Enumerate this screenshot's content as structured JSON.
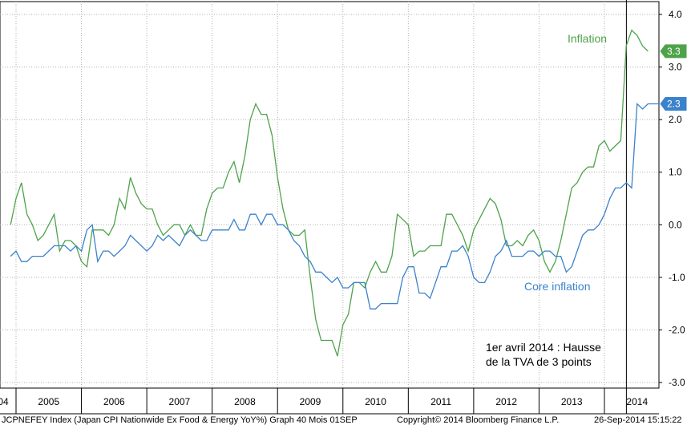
{
  "colors": {
    "inflation": "#4ea34a",
    "core": "#3b82cc",
    "grid": "#b0b0b0",
    "axis": "#000000"
  },
  "chart_data": {
    "type": "line",
    "ylim": [
      -3.0,
      4.0
    ],
    "yticks": [
      "4.0",
      "3.0",
      "2.0",
      "1.0",
      "0.0",
      "-1.0",
      "-2.0",
      "-3.0"
    ],
    "ytick_values": [
      4,
      3,
      2,
      1,
      0,
      -1,
      -2,
      -3
    ],
    "xlim": [
      "2004-12",
      "2014-12"
    ],
    "xticks": [
      "04",
      "2005",
      "2006",
      "2007",
      "2008",
      "2009",
      "2010",
      "2011",
      "2012",
      "2013",
      "2014"
    ],
    "grid": true,
    "series": [
      {
        "name": "Inflation",
        "color": "#4ea34a",
        "last_value": "3.3",
        "points": [
          [
            "2004-12",
            0.0
          ],
          [
            "2005-01",
            0.5
          ],
          [
            "2005-02",
            0.8
          ],
          [
            "2005-03",
            0.2
          ],
          [
            "2005-04",
            0.0
          ],
          [
            "2005-05",
            -0.3
          ],
          [
            "2005-06",
            -0.2
          ],
          [
            "2005-07",
            0.0
          ],
          [
            "2005-08",
            0.2
          ],
          [
            "2005-09",
            -0.5
          ],
          [
            "2005-10",
            -0.3
          ],
          [
            "2005-11",
            -0.3
          ],
          [
            "2005-12",
            -0.4
          ],
          [
            "2006-01",
            -0.7
          ],
          [
            "2006-02",
            -0.8
          ],
          [
            "2006-03",
            -0.1
          ],
          [
            "2006-04",
            -0.1
          ],
          [
            "2006-05",
            -0.1
          ],
          [
            "2006-06",
            -0.2
          ],
          [
            "2006-07",
            0.0
          ],
          [
            "2006-08",
            0.5
          ],
          [
            "2006-09",
            0.3
          ],
          [
            "2006-10",
            0.9
          ],
          [
            "2006-11",
            0.6
          ],
          [
            "2006-12",
            0.4
          ],
          [
            "2007-01",
            0.3
          ],
          [
            "2007-02",
            0.3
          ],
          [
            "2007-03",
            0.0
          ],
          [
            "2007-04",
            -0.2
          ],
          [
            "2007-05",
            -0.1
          ],
          [
            "2007-06",
            0.0
          ],
          [
            "2007-07",
            0.0
          ],
          [
            "2007-08",
            -0.2
          ],
          [
            "2007-09",
            0.0
          ],
          [
            "2007-10",
            -0.2
          ],
          [
            "2007-11",
            -0.2
          ],
          [
            "2007-12",
            0.3
          ],
          [
            "2008-01",
            0.6
          ],
          [
            "2008-02",
            0.7
          ],
          [
            "2008-03",
            0.7
          ],
          [
            "2008-04",
            1.0
          ],
          [
            "2008-05",
            1.2
          ],
          [
            "2008-06",
            0.8
          ],
          [
            "2008-07",
            1.3
          ],
          [
            "2008-08",
            2.0
          ],
          [
            "2008-09",
            2.3
          ],
          [
            "2008-10",
            2.1
          ],
          [
            "2008-11",
            2.1
          ],
          [
            "2008-12",
            1.7
          ],
          [
            "2009-01",
            0.9
          ],
          [
            "2009-02",
            0.3
          ],
          [
            "2009-03",
            -0.1
          ],
          [
            "2009-04",
            -0.2
          ],
          [
            "2009-05",
            -0.2
          ],
          [
            "2009-06",
            -0.1
          ],
          [
            "2009-07",
            -1.0
          ],
          [
            "2009-08",
            -1.8
          ],
          [
            "2009-09",
            -2.2
          ],
          [
            "2009-10",
            -2.2
          ],
          [
            "2009-11",
            -2.2
          ],
          [
            "2009-12",
            -2.5
          ],
          [
            "2010-01",
            -1.9
          ],
          [
            "2010-02",
            -1.7
          ],
          [
            "2010-03",
            -1.1
          ],
          [
            "2010-04",
            -1.1
          ],
          [
            "2010-05",
            -1.2
          ],
          [
            "2010-06",
            -0.9
          ],
          [
            "2010-07",
            -0.7
          ],
          [
            "2010-08",
            -0.9
          ],
          [
            "2010-09",
            -0.9
          ],
          [
            "2010-10",
            -0.6
          ],
          [
            "2010-11",
            0.2
          ],
          [
            "2010-12",
            0.1
          ],
          [
            "2011-01",
            0.0
          ],
          [
            "2011-02",
            -0.6
          ],
          [
            "2011-03",
            -0.5
          ],
          [
            "2011-04",
            -0.5
          ],
          [
            "2011-05",
            -0.4
          ],
          [
            "2011-06",
            -0.4
          ],
          [
            "2011-07",
            -0.4
          ],
          [
            "2011-08",
            0.2
          ],
          [
            "2011-09",
            0.2
          ],
          [
            "2011-10",
            0.0
          ],
          [
            "2011-11",
            -0.2
          ],
          [
            "2011-12",
            -0.5
          ],
          [
            "2012-01",
            -0.1
          ],
          [
            "2012-02",
            0.1
          ],
          [
            "2012-03",
            0.3
          ],
          [
            "2012-04",
            0.5
          ],
          [
            "2012-05",
            0.4
          ],
          [
            "2012-06",
            0.1
          ],
          [
            "2012-07",
            -0.4
          ],
          [
            "2012-08",
            -0.4
          ],
          [
            "2012-09",
            -0.3
          ],
          [
            "2012-10",
            -0.4
          ],
          [
            "2012-11",
            -0.2
          ],
          [
            "2012-12",
            -0.1
          ],
          [
            "2013-01",
            -0.3
          ],
          [
            "2013-02",
            -0.7
          ],
          [
            "2013-03",
            -0.9
          ],
          [
            "2013-04",
            -0.7
          ],
          [
            "2013-05",
            -0.3
          ],
          [
            "2013-06",
            0.2
          ],
          [
            "2013-07",
            0.7
          ],
          [
            "2013-08",
            0.8
          ],
          [
            "2013-09",
            1.0
          ],
          [
            "2013-10",
            1.1
          ],
          [
            "2013-11",
            1.1
          ],
          [
            "2013-12",
            1.5
          ],
          [
            "2014-01",
            1.6
          ],
          [
            "2014-02",
            1.4
          ],
          [
            "2014-03",
            1.5
          ],
          [
            "2014-04",
            1.6
          ],
          [
            "2014-05",
            3.4
          ],
          [
            "2014-06",
            3.7
          ],
          [
            "2014-07",
            3.6
          ],
          [
            "2014-08",
            3.4
          ],
          [
            "2014-09",
            3.3
          ]
        ]
      },
      {
        "name": "Core inflation",
        "color": "#3b82cc",
        "last_value": "2.3",
        "points": [
          [
            "2004-12",
            -0.6
          ],
          [
            "2005-01",
            -0.5
          ],
          [
            "2005-02",
            -0.7
          ],
          [
            "2005-03",
            -0.7
          ],
          [
            "2005-04",
            -0.6
          ],
          [
            "2005-05",
            -0.6
          ],
          [
            "2005-06",
            -0.6
          ],
          [
            "2005-07",
            -0.5
          ],
          [
            "2005-08",
            -0.4
          ],
          [
            "2005-09",
            -0.4
          ],
          [
            "2005-10",
            -0.4
          ],
          [
            "2005-11",
            -0.5
          ],
          [
            "2005-12",
            -0.4
          ],
          [
            "2006-01",
            -0.5
          ],
          [
            "2006-02",
            -0.1
          ],
          [
            "2006-03",
            0.0
          ],
          [
            "2006-04",
            -0.7
          ],
          [
            "2006-05",
            -0.5
          ],
          [
            "2006-06",
            -0.5
          ],
          [
            "2006-07",
            -0.6
          ],
          [
            "2006-08",
            -0.5
          ],
          [
            "2006-09",
            -0.4
          ],
          [
            "2006-10",
            -0.2
          ],
          [
            "2006-11",
            -0.3
          ],
          [
            "2006-12",
            -0.4
          ],
          [
            "2007-01",
            -0.5
          ],
          [
            "2007-02",
            -0.4
          ],
          [
            "2007-03",
            -0.2
          ],
          [
            "2007-04",
            -0.3
          ],
          [
            "2007-05",
            -0.2
          ],
          [
            "2007-06",
            -0.3
          ],
          [
            "2007-07",
            -0.4
          ],
          [
            "2007-08",
            -0.2
          ],
          [
            "2007-09",
            -0.1
          ],
          [
            "2007-10",
            -0.2
          ],
          [
            "2007-11",
            -0.3
          ],
          [
            "2007-12",
            -0.3
          ],
          [
            "2008-01",
            -0.1
          ],
          [
            "2008-02",
            -0.1
          ],
          [
            "2008-03",
            -0.1
          ],
          [
            "2008-04",
            -0.1
          ],
          [
            "2008-05",
            0.1
          ],
          [
            "2008-06",
            -0.1
          ],
          [
            "2008-07",
            -0.1
          ],
          [
            "2008-08",
            0.2
          ],
          [
            "2008-09",
            0.2
          ],
          [
            "2008-10",
            0.0
          ],
          [
            "2008-11",
            0.2
          ],
          [
            "2008-12",
            0.2
          ],
          [
            "2009-01",
            0.0
          ],
          [
            "2009-02",
            0.0
          ],
          [
            "2009-03",
            -0.1
          ],
          [
            "2009-04",
            -0.3
          ],
          [
            "2009-05",
            -0.4
          ],
          [
            "2009-06",
            -0.6
          ],
          [
            "2009-07",
            -0.7
          ],
          [
            "2009-08",
            -0.9
          ],
          [
            "2009-09",
            -0.9
          ],
          [
            "2009-10",
            -1.0
          ],
          [
            "2009-11",
            -1.1
          ],
          [
            "2009-12",
            -1.0
          ],
          [
            "2010-01",
            -1.2
          ],
          [
            "2010-02",
            -1.2
          ],
          [
            "2010-03",
            -1.1
          ],
          [
            "2010-04",
            -1.1
          ],
          [
            "2010-05",
            -1.1
          ],
          [
            "2010-06",
            -1.6
          ],
          [
            "2010-07",
            -1.6
          ],
          [
            "2010-08",
            -1.5
          ],
          [
            "2010-09",
            -1.5
          ],
          [
            "2010-10",
            -1.5
          ],
          [
            "2010-11",
            -1.5
          ],
          [
            "2010-12",
            -1.0
          ],
          [
            "2011-01",
            -0.8
          ],
          [
            "2011-02",
            -0.8
          ],
          [
            "2011-03",
            -1.3
          ],
          [
            "2011-04",
            -1.3
          ],
          [
            "2011-05",
            -1.4
          ],
          [
            "2011-06",
            -1.1
          ],
          [
            "2011-07",
            -0.8
          ],
          [
            "2011-08",
            -0.8
          ],
          [
            "2011-09",
            -0.5
          ],
          [
            "2011-10",
            -0.5
          ],
          [
            "2011-11",
            -0.4
          ],
          [
            "2011-12",
            -0.6
          ],
          [
            "2012-01",
            -1.0
          ],
          [
            "2012-02",
            -1.1
          ],
          [
            "2012-03",
            -1.1
          ],
          [
            "2012-04",
            -0.9
          ],
          [
            "2012-05",
            -0.6
          ],
          [
            "2012-06",
            -0.5
          ],
          [
            "2012-07",
            -0.3
          ],
          [
            "2012-08",
            -0.6
          ],
          [
            "2012-09",
            -0.6
          ],
          [
            "2012-10",
            -0.6
          ],
          [
            "2012-11",
            -0.5
          ],
          [
            "2012-12",
            -0.5
          ],
          [
            "2013-01",
            -0.6
          ],
          [
            "2013-02",
            -0.5
          ],
          [
            "2013-03",
            -0.5
          ],
          [
            "2013-04",
            -0.6
          ],
          [
            "2013-05",
            -0.6
          ],
          [
            "2013-06",
            -0.9
          ],
          [
            "2013-07",
            -0.8
          ],
          [
            "2013-08",
            -0.5
          ],
          [
            "2013-09",
            -0.2
          ],
          [
            "2013-10",
            -0.1
          ],
          [
            "2013-11",
            -0.1
          ],
          [
            "2013-12",
            0.0
          ],
          [
            "2014-01",
            0.2
          ],
          [
            "2014-02",
            0.5
          ],
          [
            "2014-03",
            0.7
          ],
          [
            "2014-04",
            0.7
          ],
          [
            "2014-05",
            0.8
          ],
          [
            "2014-06",
            0.7
          ],
          [
            "2014-07",
            2.3
          ],
          [
            "2014-08",
            2.2
          ],
          [
            "2014-09",
            2.3
          ],
          [
            "2014-10",
            2.3
          ],
          [
            "2014-11",
            2.3
          ]
        ]
      }
    ],
    "event_marker": {
      "date": "2014-04"
    },
    "annotations": {
      "inflation_label": "Inflation",
      "core_label": "Core inflation",
      "vat_line1": "1er avril 2014 : Hausse",
      "vat_line2": "de la TVA de 3 points"
    }
  },
  "footer": {
    "left": "JCPNEFEY Index (Japan CPI Nationwide Ex Food & Energy YoY%) Graph 40  Mois 01SEP",
    "middle": "Copyright© 2014 Bloomberg Finance L.P.",
    "right": "26-Sep-2014 15:15:22"
  }
}
